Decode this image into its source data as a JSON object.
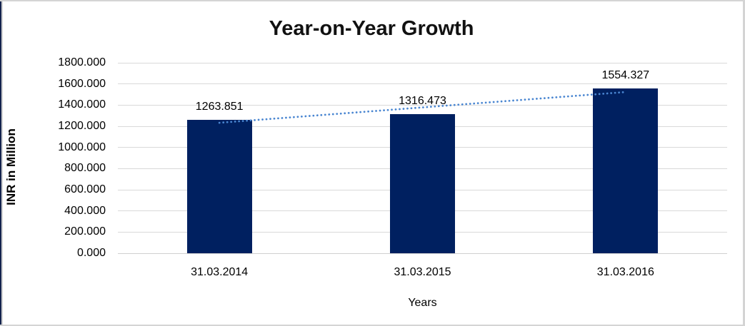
{
  "chart_data": {
    "type": "bar",
    "title": "Year-on-Year Growth",
    "xlabel": "Years",
    "ylabel": "INR in Million",
    "categories": [
      "31.03.2014",
      "31.03.2015",
      "31.03.2016"
    ],
    "values": [
      1263.851,
      1316.473,
      1554.327
    ],
    "value_labels": [
      "1263.851",
      "1316.473",
      "1554.327"
    ],
    "ylim": [
      0,
      1800
    ],
    "ytick_values": [
      0,
      200,
      400,
      600,
      800,
      1000,
      1200,
      1400,
      1600,
      1800
    ],
    "ytick_labels": [
      "0.000",
      "200.000",
      "400.000",
      "600.000",
      "800.000",
      "1000.000",
      "1200.000",
      "1400.000",
      "1600.000",
      "1800.000"
    ],
    "grid": true,
    "legend": "none",
    "trendline": {
      "type": "linear",
      "style": "dotted"
    },
    "colors": {
      "bar": "#002060",
      "trendline": "#4a86d1",
      "gridline": "#d9d9d9",
      "text": "#000000",
      "frame_border": "#d4d4d4",
      "left_accent": "#14244e",
      "background": "#ffffff"
    }
  }
}
